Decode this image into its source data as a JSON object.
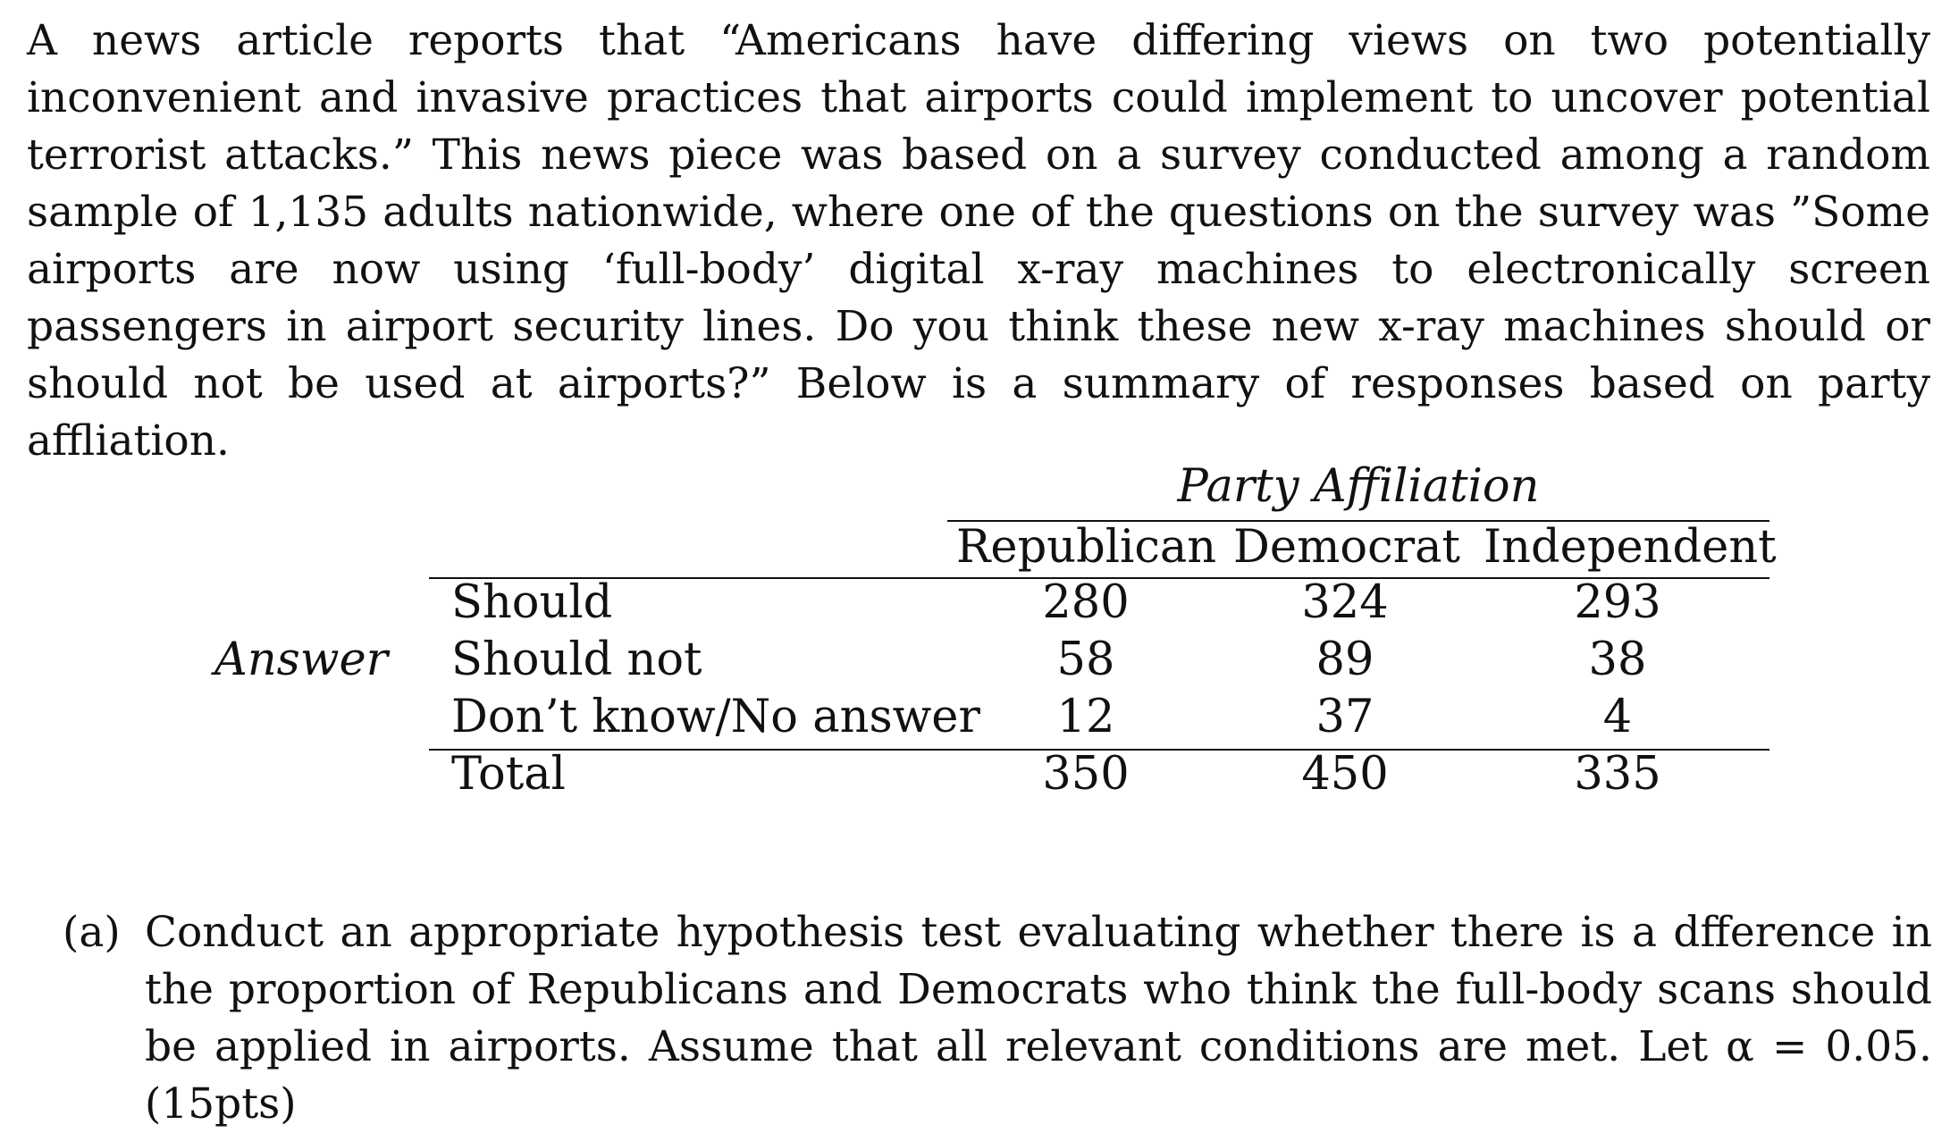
{
  "intro_text": "A news article reports that “Americans have differing views on two potentially inconvenient and invasive practices that airports could implement to uncover potential terrorist attacks.” This news piece was based on a survey conducted among a random sample of 1,135 adults nationwide, where one of the questions on the survey was ”Some airports are now using ‘full-body’ digital x-ray machines to electronically screen passengers in airport security lines.  Do you think these new x-ray machines should or should not be used at airports?” Below is a summary of responses based on party affliation.",
  "table": {
    "group_header": "Party Affiliation",
    "row_group_label": "Answer",
    "columns": [
      "Republican",
      "Democrat",
      "Independent"
    ],
    "rows": [
      {
        "label": "Should",
        "values": [
          "280",
          "324",
          "293"
        ]
      },
      {
        "label": "Should not",
        "values": [
          "58",
          "89",
          "38"
        ]
      },
      {
        "label": "Don’t know/No answer",
        "values": [
          "12",
          "37",
          "4"
        ]
      }
    ],
    "total": {
      "label": "Total",
      "values": [
        "350",
        "450",
        "335"
      ]
    }
  },
  "question": {
    "marker": "(a)",
    "text": "Conduct an appropriate hypothesis test evaluating whether there is a dfference in the proportion of Republicans and Democrats who think the full-body scans should be applied in airports.  Assume that all relevant conditions are met.  Let α = 0.05.(15pts)"
  }
}
